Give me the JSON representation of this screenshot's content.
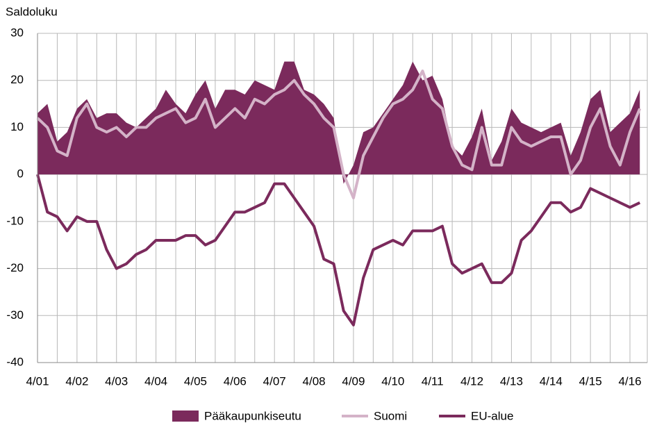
{
  "chart_data": {
    "type": "line",
    "ylabel": "Saldoluku",
    "categories": [
      "4/01",
      null,
      null,
      null,
      "4/02",
      null,
      null,
      null,
      "4/03",
      null,
      null,
      null,
      "4/04",
      null,
      null,
      null,
      "4/05",
      null,
      null,
      null,
      "4/06",
      null,
      null,
      null,
      "4/07",
      null,
      null,
      null,
      "4/08",
      null,
      null,
      null,
      "4/09",
      null,
      null,
      null,
      "4/10",
      null,
      null,
      null,
      "4/11",
      null,
      null,
      null,
      "4/12",
      null,
      null,
      null,
      "4/13",
      null,
      null,
      null,
      "4/14",
      null,
      null,
      null,
      "4/15",
      null,
      null,
      null,
      "4/16",
      null
    ],
    "series": [
      {
        "name": "Pääkaupunkiseutu",
        "kind": "area",
        "color": "#7b2a5c",
        "values": [
          13,
          15,
          7,
          9,
          14,
          16,
          12,
          13,
          13,
          11,
          10,
          12,
          14,
          18,
          15,
          13,
          17,
          20,
          14,
          18,
          18,
          17,
          20,
          19,
          18,
          24,
          24,
          18,
          17,
          15,
          12,
          -2,
          2,
          9,
          10,
          13,
          16,
          19,
          24,
          20,
          21,
          16,
          6,
          4,
          8,
          14,
          3,
          7,
          14,
          11,
          10,
          9,
          10,
          11,
          4,
          9,
          16,
          18,
          9,
          11,
          13,
          18
        ]
      },
      {
        "name": "Suomi",
        "kind": "line",
        "color": "#d4b3c8",
        "values": [
          12,
          10,
          5,
          4,
          12,
          15,
          10,
          9,
          10,
          8,
          10,
          10,
          12,
          13,
          14,
          11,
          12,
          16,
          10,
          12,
          14,
          12,
          16,
          15,
          17,
          18,
          20,
          17,
          15,
          12,
          10,
          0,
          -5,
          4,
          8,
          12,
          15,
          16,
          18,
          22,
          16,
          14,
          6,
          2,
          1,
          10,
          2,
          2,
          10,
          7,
          6,
          7,
          8,
          8,
          0,
          3,
          10,
          14,
          6,
          2,
          9,
          14
        ]
      },
      {
        "name": "EU-alue",
        "kind": "line",
        "color": "#7b2a5c",
        "values": [
          0,
          -8,
          -9,
          -12,
          -9,
          -10,
          -10,
          -16,
          -20,
          -19,
          -17,
          -16,
          -14,
          -14,
          -14,
          -13,
          -13,
          -15,
          -14,
          -11,
          -8,
          -8,
          -7,
          -6,
          -2,
          -2,
          -5,
          -8,
          -11,
          -18,
          -19,
          -29,
          -32,
          -22,
          -16,
          -15,
          -14,
          -15,
          -12,
          -12,
          -12,
          -11,
          -19,
          -21,
          -20,
          -19,
          -23,
          -23,
          -21,
          -14,
          -12,
          -9,
          -6,
          -6,
          -8,
          -7,
          -3,
          -4,
          -5,
          -6,
          -7,
          -6
        ]
      }
    ],
    "ylim": [
      -40,
      30
    ],
    "yticks": [
      -40,
      -30,
      -20,
      -10,
      0,
      10,
      20,
      30
    ],
    "grid": true,
    "legend": "bottom"
  }
}
